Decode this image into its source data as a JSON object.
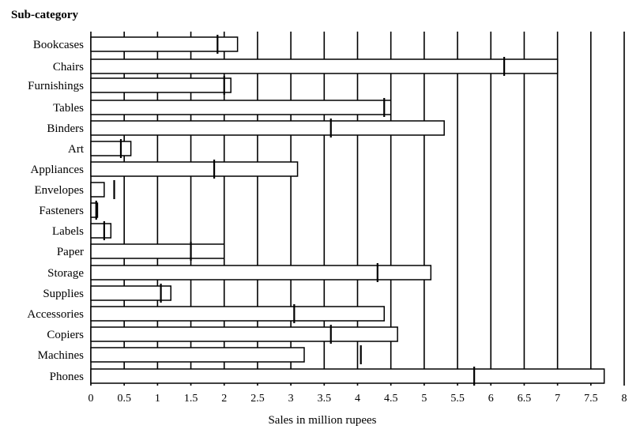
{
  "chart_data": {
    "type": "bar",
    "orientation": "horizontal",
    "ylabel": "Sub-category",
    "xlabel": "Sales in million rupees",
    "xlim": [
      0,
      8
    ],
    "xticks": [
      0,
      0.5,
      1,
      1.5,
      2,
      2.5,
      3,
      3.5,
      4,
      4.5,
      5,
      5.5,
      6,
      6.5,
      7,
      7.5,
      8
    ],
    "xtick_labels": [
      "0",
      "0.5",
      "1",
      "1.5",
      "2",
      "2.5",
      "3",
      "3.5",
      "4",
      "4.5",
      "5",
      "5.5",
      "6",
      "6.5",
      "7",
      "7.5",
      "8"
    ],
    "grid": "vertical",
    "legend": "none",
    "categories": [
      "Bookcases",
      "Chairs",
      "Furnishings",
      "Tables",
      "Binders",
      "Art",
      "Appliances",
      "Envelopes",
      "Fasteners",
      "Labels",
      "Paper",
      "Storage",
      "Supplies",
      "Accessories",
      "Copiers",
      "Machines",
      "Phones"
    ],
    "series": [
      {
        "values": [
          2.2,
          7.0,
          2.1,
          4.5,
          5.3,
          0.6,
          3.1,
          0.2,
          0.1,
          0.3,
          2.0,
          5.1,
          1.2,
          4.4,
          4.6,
          3.2,
          7.7
        ],
        "color": "#ffffff"
      },
      {
        "marker": "vertical-tick",
        "values": [
          1.9,
          6.2,
          2.0,
          4.4,
          3.6,
          0.45,
          1.85,
          0.35,
          0.08,
          0.2,
          1.5,
          4.3,
          1.05,
          3.05,
          3.6,
          4.05,
          5.75
        ],
        "color": "#000000"
      }
    ]
  }
}
